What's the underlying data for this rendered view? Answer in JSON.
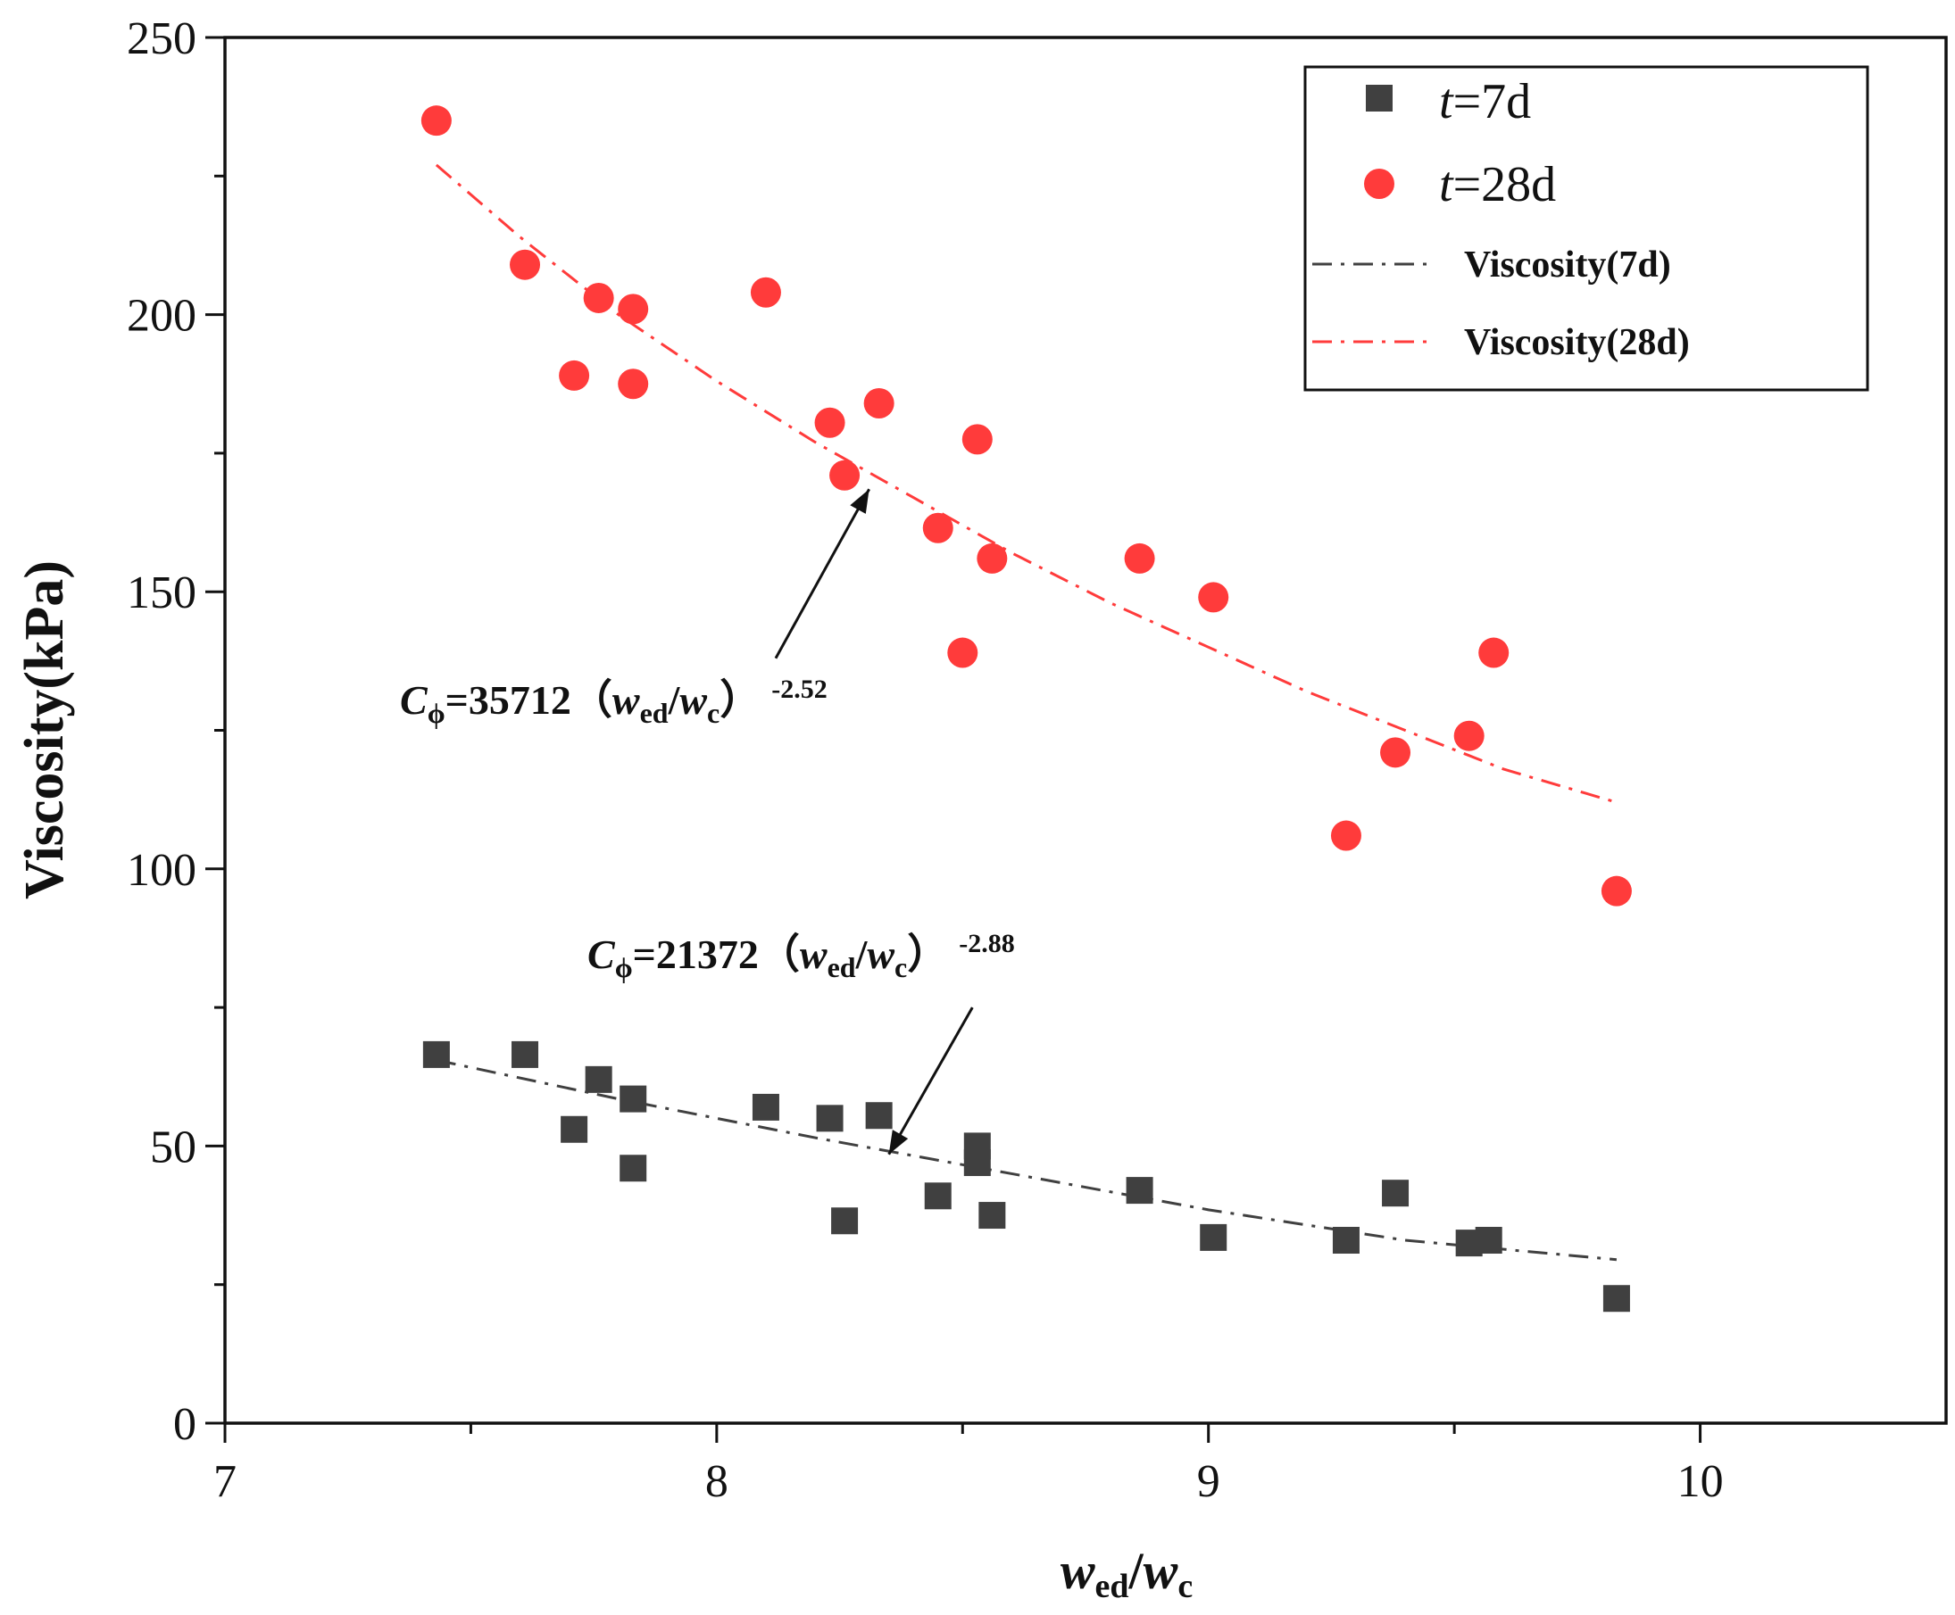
{
  "chart_data": {
    "type": "scatter",
    "title": "",
    "xlabel": {
      "base": "w",
      "sub": "ed",
      "sep": "/",
      "base2": "w",
      "sub2": "c"
    },
    "ylabel": "Viscosity(kPa)",
    "xlim": [
      7,
      10.5
    ],
    "ylim": [
      0,
      250
    ],
    "xticks": [
      7,
      8,
      9,
      10
    ],
    "yticks": [
      0,
      50,
      100,
      150,
      200,
      250
    ],
    "grid": false,
    "legend_position": "top-right",
    "series": [
      {
        "name": {
          "italic": "t",
          "rest": "=7d"
        },
        "marker": "square",
        "color": "#404040",
        "x": [
          7.43,
          7.61,
          7.71,
          7.76,
          7.83,
          7.83,
          8.1,
          8.23,
          8.26,
          8.33,
          8.45,
          8.53,
          8.53,
          8.56,
          8.86,
          9.01,
          9.28,
          9.38,
          9.53,
          9.57,
          9.83
        ],
        "y": [
          66.5,
          66.5,
          53,
          62,
          46,
          58.5,
          57,
          55,
          36.5,
          55.5,
          41,
          50,
          47,
          37.5,
          42,
          33.5,
          33,
          41.5,
          32.5,
          33,
          22.5
        ]
      },
      {
        "name": {
          "italic": "t",
          "rest": "=28d"
        },
        "marker": "circle",
        "color": "#ff3b3b",
        "x": [
          7.43,
          7.61,
          7.71,
          7.76,
          7.83,
          7.83,
          8.1,
          8.23,
          8.26,
          8.33,
          8.45,
          8.5,
          8.53,
          8.56,
          8.86,
          9.01,
          9.28,
          9.38,
          9.53,
          9.58,
          9.83
        ],
        "y": [
          235,
          209,
          189,
          203,
          201,
          187.5,
          204,
          180.5,
          171,
          184,
          161.5,
          139,
          177.5,
          156,
          156,
          149,
          106,
          121,
          124,
          139,
          96
        ]
      }
    ],
    "fits": [
      {
        "name": "Viscosity(7d)",
        "color": "#404040",
        "style": "dash-dot",
        "x": [
          7.43,
          7.8,
          8.2,
          8.6,
          9.0,
          9.4,
          9.83
        ],
        "y": [
          65.5,
          58.5,
          51.5,
          45.0,
          38.5,
          33.0,
          29.5
        ]
      },
      {
        "name": "Viscosity(28d)",
        "color": "#ff3b3b",
        "style": "dash-dot",
        "x": [
          7.43,
          7.6,
          7.8,
          8.0,
          8.2,
          8.4,
          8.6,
          8.8,
          9.0,
          9.2,
          9.4,
          9.6,
          9.83
        ],
        "y": [
          227,
          214,
          200,
          188,
          177,
          167,
          157,
          148,
          140,
          132,
          125,
          118,
          112
        ]
      }
    ],
    "annotations": [
      {
        "C": "C",
        "phi": "ϕ",
        "equals": "=35712",
        "lp": "（",
        "w1": "w",
        "s1": "ed",
        "slash": "/",
        "w2": "w",
        "s2": "c",
        "rp": "）",
        "exp": "-2.52",
        "arrow_from": [
          8.12,
          138
        ],
        "arrow_to": [
          8.31,
          168.5
        ]
      },
      {
        "C": "C",
        "phi": "ϕ",
        "equals": "=21372",
        "lp": "（",
        "w1": "w",
        "s1": "ed",
        "slash": "/",
        "w2": "w",
        "s2": "c",
        "rp": "）",
        "exp": "-2.88",
        "arrow_from": [
          8.52,
          75
        ],
        "arrow_to": [
          8.35,
          48.5
        ]
      }
    ]
  }
}
